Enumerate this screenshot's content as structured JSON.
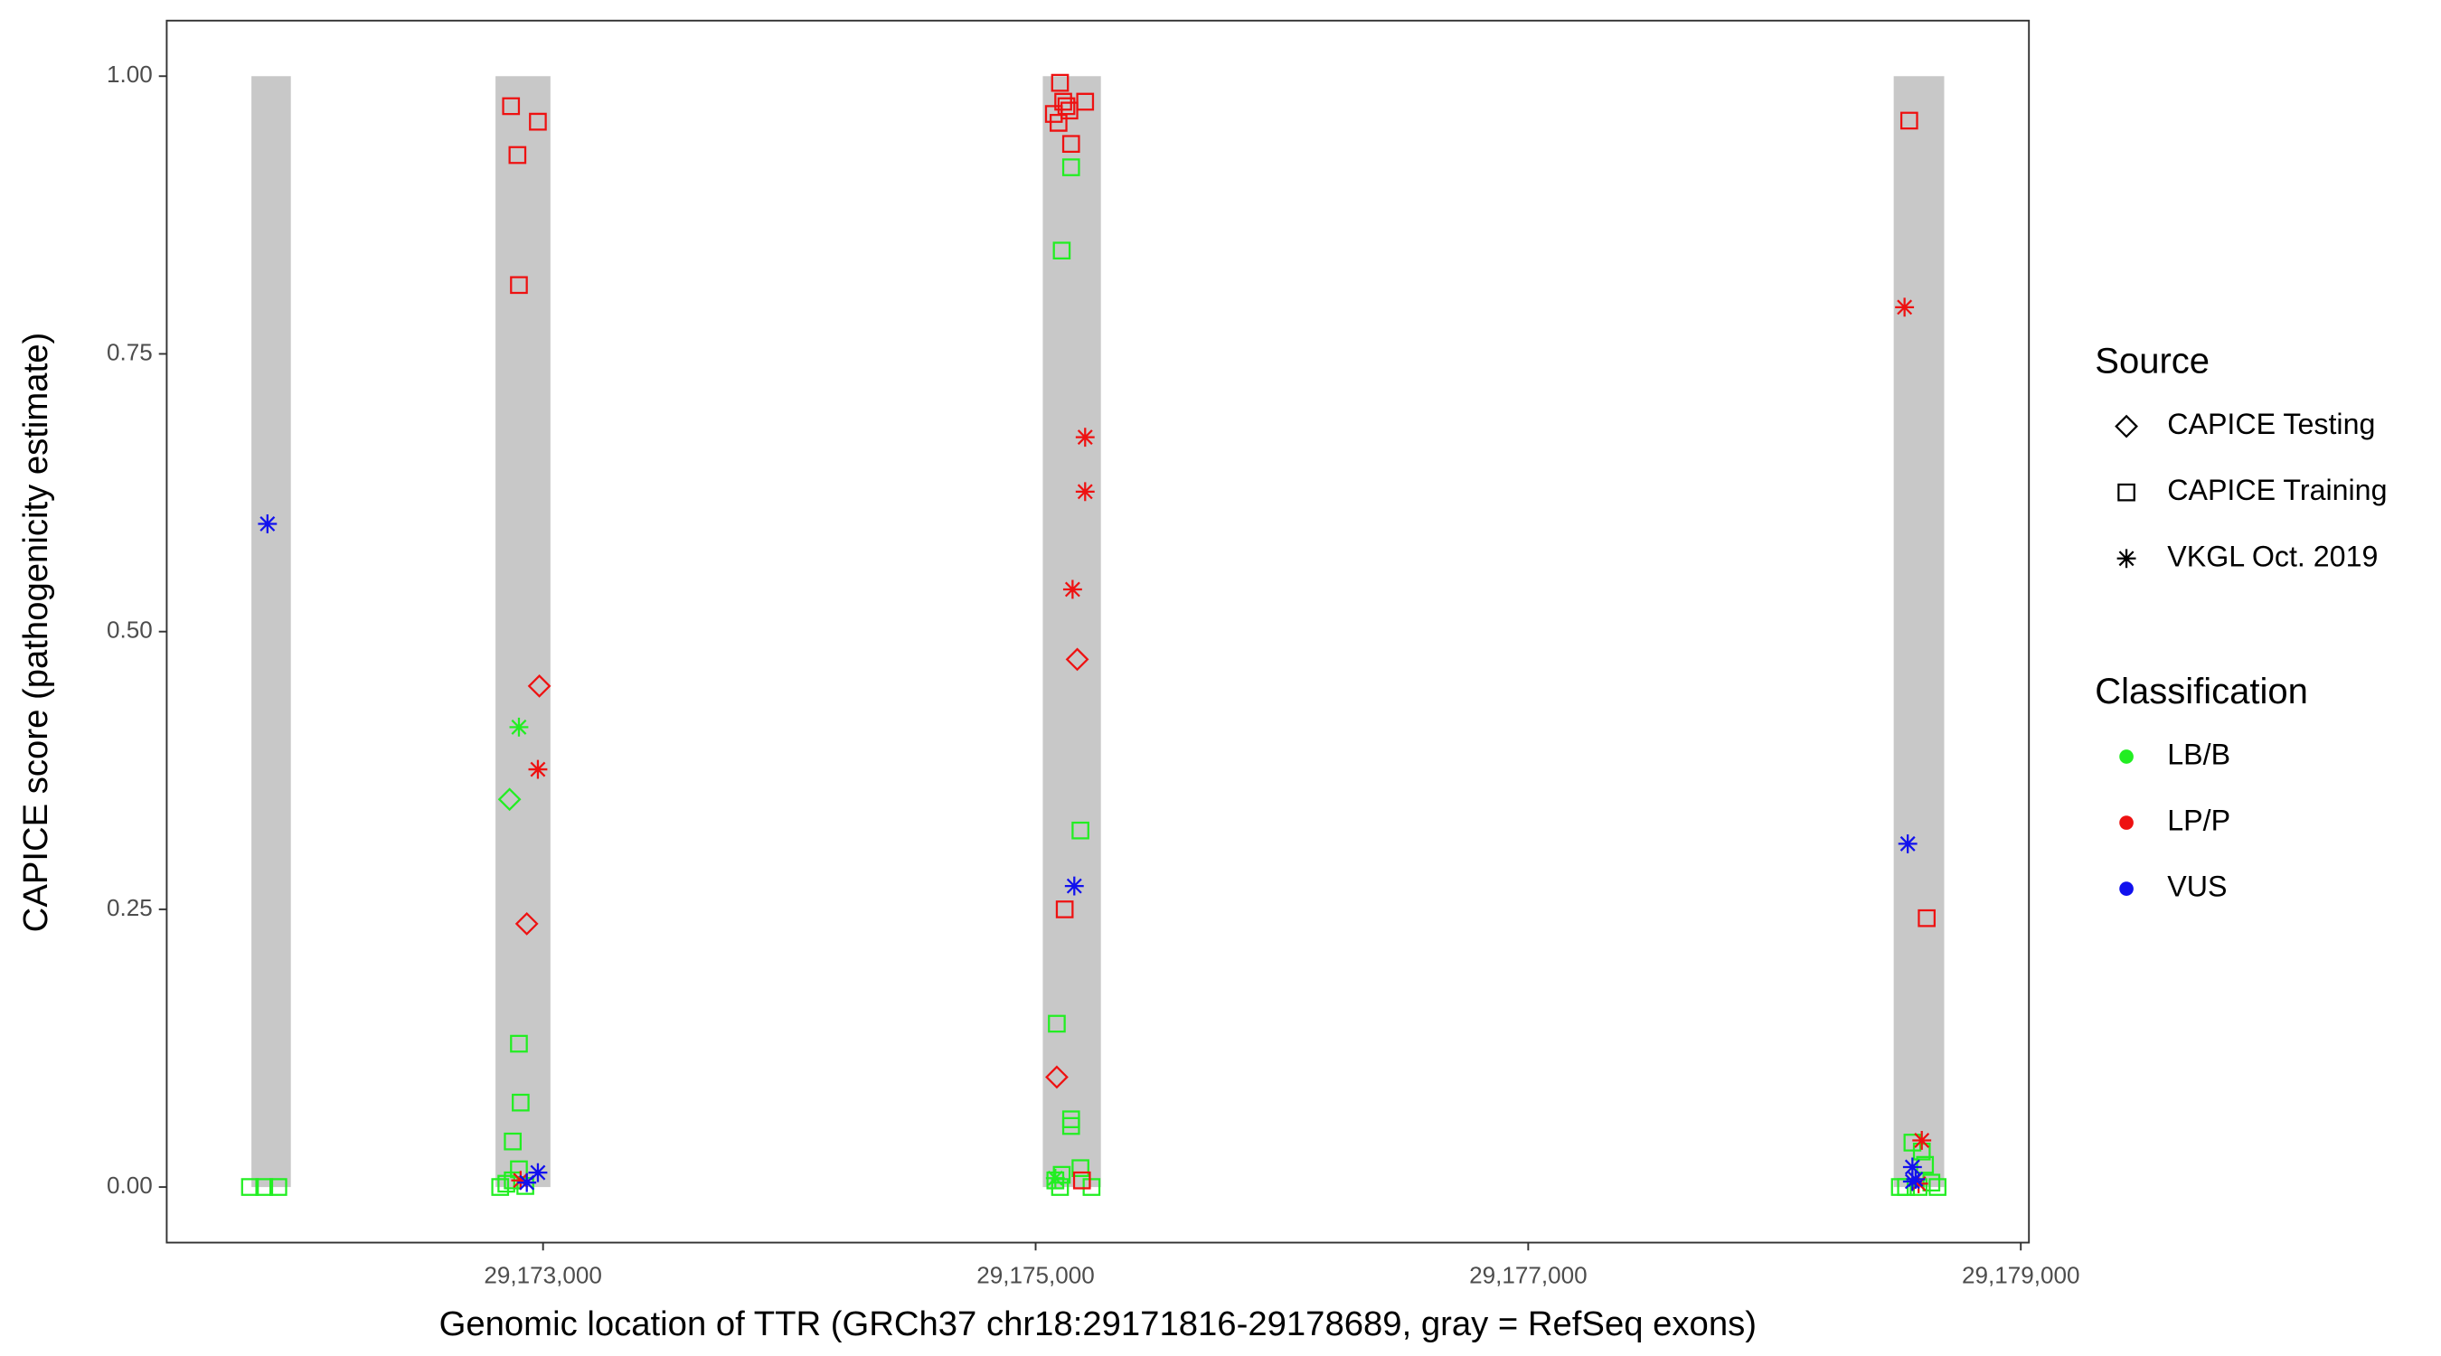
{
  "chart_data": {
    "type": "scatter",
    "x_label": "Genomic location of TTR (GRCh37 chr18:29171816-29178689, gray = RefSeq exons)",
    "y_label": "CAPICE score (pathogenicity estimate)",
    "xlim": [
      29171472,
      29179033
    ],
    "ylim": [
      -0.05,
      1.05
    ],
    "xticks": [
      {
        "value": 29173000,
        "label": "29,173,000"
      },
      {
        "value": 29175000,
        "label": "29,175,000"
      },
      {
        "value": 29177000,
        "label": "29,177,000"
      },
      {
        "value": 29179000,
        "label": "29,179,000"
      }
    ],
    "yticks": [
      {
        "value": 0,
        "label": "0.00"
      },
      {
        "value": 0.25,
        "label": "0.25"
      },
      {
        "value": 0.5,
        "label": "0.50"
      },
      {
        "value": 0.75,
        "label": "0.75"
      },
      {
        "value": 1,
        "label": "1.00"
      }
    ],
    "grid": false,
    "exon_color": "#c8c8c8",
    "exons": [
      {
        "start": 29171816,
        "end": 29171976
      },
      {
        "start": 29172807,
        "end": 29173030
      },
      {
        "start": 29175029,
        "end": 29175265
      },
      {
        "start": 29178484,
        "end": 29178689
      }
    ],
    "source_title": "Source",
    "sources": [
      {
        "name": "CAPICE Testing",
        "shape": "diamond"
      },
      {
        "name": "CAPICE Training",
        "shape": "square"
      },
      {
        "name": "VKGL Oct. 2019",
        "shape": "asterisk"
      }
    ],
    "classification_title": "Classification",
    "classifications": [
      {
        "name": "LB/B",
        "color": "#22ee22"
      },
      {
        "name": "LP/P",
        "color": "#ee1111"
      },
      {
        "name": "VUS",
        "color": "#1111ee"
      }
    ],
    "series": [
      {
        "source": "CAPICE Training",
        "classification": "LB/B",
        "x": [
          29171810,
          29171868,
          29171925,
          29172902,
          29172909,
          29172877,
          29172902,
          29172826,
          29172851,
          29172877,
          29172928,
          29175144,
          29175106,
          29175182,
          29175086,
          29175144,
          29175144,
          29175182,
          29175106,
          29175080,
          29175099,
          29175227,
          29178560,
          29178598,
          29178611,
          29178509,
          29178534,
          29178585,
          29178662,
          29178637
        ],
        "values": [
          0,
          0,
          0,
          0.129,
          0.076,
          0.041,
          0.016,
          0,
          0.003,
          0.006,
          0.001,
          0.918,
          0.843,
          0.321,
          0.147,
          0.061,
          0.055,
          0.017,
          0.011,
          0.006,
          0,
          0,
          0.04,
          0.032,
          0.02,
          0,
          0,
          0,
          0,
          0.004
        ]
      },
      {
        "source": "CAPICE Training",
        "classification": "LP/P",
        "x": [
          29172870,
          29172979,
          29172896,
          29172902,
          29175099,
          29175074,
          29175112,
          29175137,
          29175093,
          29175125,
          29175201,
          29175144,
          29175118,
          29175188,
          29178547,
          29178618
        ],
        "values": [
          0.973,
          0.959,
          0.929,
          0.812,
          0.994,
          0.966,
          0.977,
          0.969,
          0.958,
          0.973,
          0.977,
          0.939,
          0.25,
          0.006,
          0.96,
          0.242
        ]
      },
      {
        "source": "CAPICE Testing",
        "classification": "LB/B",
        "x": [
          29172864
        ],
        "values": [
          0.349
        ]
      },
      {
        "source": "CAPICE Testing",
        "classification": "LP/P",
        "x": [
          29172985,
          29172934,
          29175169,
          29175086
        ],
        "values": [
          0.451,
          0.237,
          0.475,
          0.099
        ]
      },
      {
        "source": "VKGL Oct. 2019",
        "classification": "LB/B",
        "x": [
          29172902,
          29175080
        ],
        "values": [
          0.414,
          0.008
        ]
      },
      {
        "source": "VKGL Oct. 2019",
        "classification": "LP/P",
        "x": [
          29172979,
          29172909,
          29175201,
          29175201,
          29175150,
          29178528,
          29178598,
          29178585
        ],
        "values": [
          0.376,
          0.006,
          0.675,
          0.626,
          0.538,
          0.792,
          0.042,
          0.003
        ]
      },
      {
        "source": "VKGL Oct. 2019",
        "classification": "VUS",
        "x": [
          29171881,
          29172979,
          29172934,
          29175157,
          29178541,
          29178560,
          29178573,
          29178560
        ],
        "values": [
          0.597,
          0.013,
          0.004,
          0.271,
          0.309,
          0.018,
          0.007,
          0.005
        ]
      }
    ]
  }
}
